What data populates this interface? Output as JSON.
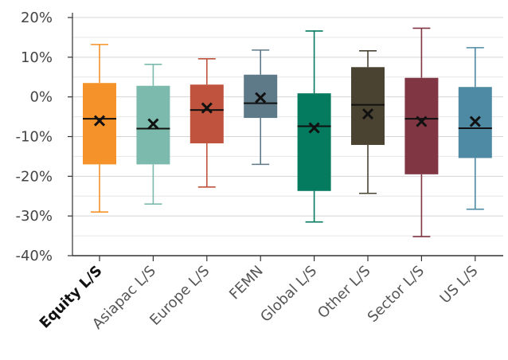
{
  "chart_data": {
    "type": "boxplot",
    "title": "",
    "xlabel": "",
    "ylabel": "",
    "ylim": [
      -40,
      20
    ],
    "yticks": [
      20,
      10,
      0,
      -10,
      -20,
      -30,
      -40
    ],
    "ytick_labels": [
      "20%",
      "10%",
      "0%",
      "-10%",
      "-20%",
      "-30%",
      "-40%"
    ],
    "grid": "horizontal",
    "highlight_category": "Equity L/S",
    "categories": [
      "Equity L/S",
      "Asiapac L/S",
      "Europe L/S",
      "FEMN",
      "Global L/S",
      "Other L/S",
      "Sector L/S",
      "US L/S"
    ],
    "series": [
      {
        "name": "",
        "min": -29.0,
        "q1": -17.0,
        "median": -5.5,
        "mean": -6.0,
        "q3": 3.5,
        "max": 13.2,
        "color": "#F5922A"
      },
      {
        "name": "",
        "min": -27.0,
        "q1": -17.0,
        "median": -8.0,
        "mean": -6.8,
        "q3": 2.8,
        "max": 8.2,
        "color": "#7BBAAC"
      },
      {
        "name": "",
        "min": -22.7,
        "q1": -11.7,
        "median": -3.3,
        "mean": -2.8,
        "q3": 3.1,
        "max": 9.6,
        "color": "#BF533E"
      },
      {
        "name": "",
        "min": -17.0,
        "q1": -5.3,
        "median": -1.6,
        "mean": -0.2,
        "q3": 5.6,
        "max": 11.8,
        "color": "#5E7987"
      },
      {
        "name": "",
        "min": -31.5,
        "q1": -23.7,
        "median": -7.4,
        "mean": -7.8,
        "q3": 0.9,
        "max": 16.6,
        "color": "#047A5E"
      },
      {
        "name": "",
        "min": -24.3,
        "q1": -12.1,
        "median": -2.0,
        "mean": -4.3,
        "q3": 7.5,
        "max": 11.6,
        "color": "#4A4332"
      },
      {
        "name": "",
        "min": -35.2,
        "q1": -19.5,
        "median": -5.5,
        "mean": -6.2,
        "q3": 4.8,
        "max": 17.3,
        "color": "#813644"
      },
      {
        "name": "",
        "min": -28.3,
        "q1": -15.4,
        "median": -7.9,
        "mean": -6.2,
        "q3": 2.5,
        "max": 12.4,
        "color": "#4E8AA3"
      }
    ]
  }
}
